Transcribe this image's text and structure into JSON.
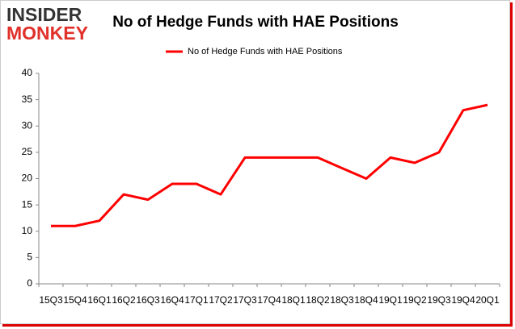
{
  "logo": {
    "top": "INSIDER",
    "bottom": "MONKEY"
  },
  "chart_data": {
    "type": "line",
    "title": "No of Hedge Funds with HAE Positions",
    "categories": [
      "15Q3",
      "15Q4",
      "16Q1",
      "16Q2",
      "16Q3",
      "16Q4",
      "17Q1",
      "17Q2",
      "17Q3",
      "17Q4",
      "18Q1",
      "18Q2",
      "18Q3",
      "18Q4",
      "19Q1",
      "19Q2",
      "19Q3",
      "19Q4",
      "20Q1"
    ],
    "series": [
      {
        "name": "No of Hedge Funds with HAE Positions",
        "color": "#ff0000",
        "values": [
          11,
          11,
          12,
          17,
          16,
          19,
          19,
          17,
          24,
          24,
          24,
          24,
          22,
          20,
          24,
          23,
          25,
          33,
          34
        ]
      }
    ],
    "ylim": [
      0,
      40
    ],
    "yticks": [
      0,
      5,
      10,
      15,
      20,
      25,
      30,
      35,
      40
    ],
    "grid": false,
    "legend": "top"
  }
}
